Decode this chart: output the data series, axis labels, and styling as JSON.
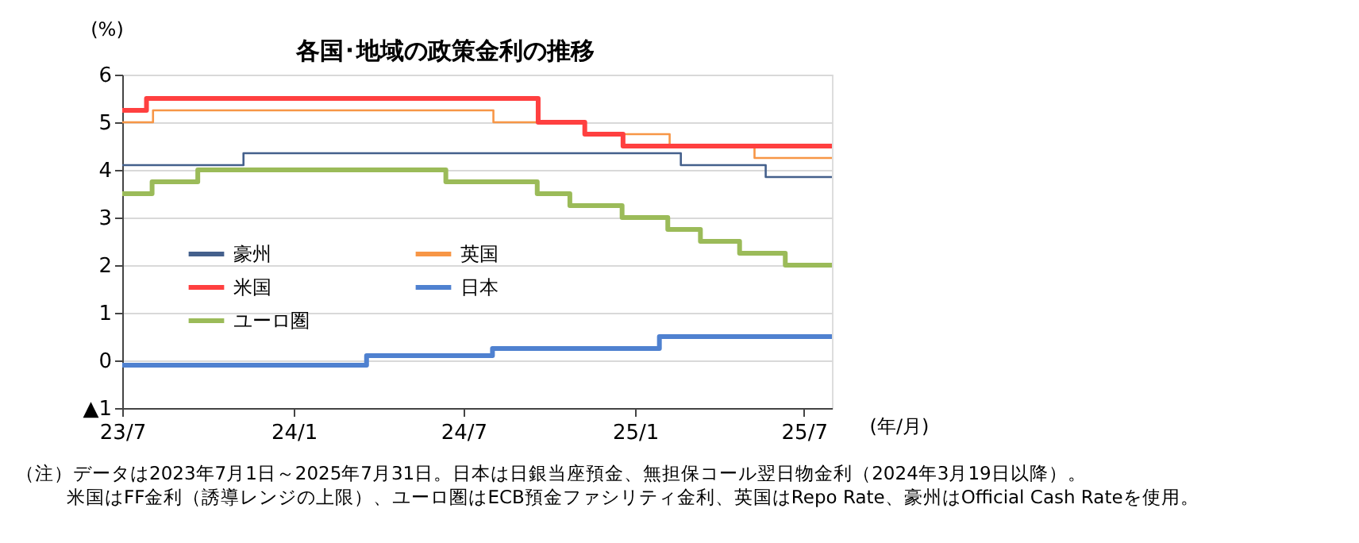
{
  "chart_data": {
    "type": "step",
    "title": "各国･地域の政策金利の推移",
    "ylabel": "(%)",
    "xlabel": "(年/月)",
    "xlim": [
      "2023-07-01",
      "2025-07-31"
    ],
    "xticks": [
      {
        "value": "2023-07",
        "label": "23/7"
      },
      {
        "value": "2024-01",
        "label": "24/1"
      },
      {
        "value": "2024-07",
        "label": "24/7"
      },
      {
        "value": "2025-01",
        "label": "25/1"
      },
      {
        "value": "2025-07",
        "label": "25/7"
      }
    ],
    "ylim": [
      -1,
      6
    ],
    "yticks": [
      {
        "value": -1,
        "label": "▲1"
      },
      0,
      1,
      2,
      3,
      4,
      5,
      6
    ],
    "grid": "y",
    "legend": "left",
    "marker": "none",
    "line_style": "solid",
    "series": [
      {
        "name": "豪州",
        "color": "#44608c",
        "x": [
          "2023-07-01",
          "2023-11-08",
          "2025-02-19",
          "2025-05-21",
          "2025-07-31"
        ],
        "values": [
          4.1,
          4.35,
          4.1,
          3.85,
          3.85
        ]
      },
      {
        "name": "英国",
        "color": "#f79646",
        "x": [
          "2023-07-01",
          "2023-08-03",
          "2024-08-02",
          "2024-11-08",
          "2025-02-07",
          "2025-05-09",
          "2025-07-31"
        ],
        "values": [
          5.0,
          5.25,
          5.0,
          4.75,
          4.5,
          4.25,
          4.25
        ]
      },
      {
        "name": "米国",
        "color": "#ff4040",
        "x": [
          "2023-07-01",
          "2023-07-27",
          "2024-09-19",
          "2024-11-08",
          "2024-12-19",
          "2025-07-31"
        ],
        "values": [
          5.25,
          5.5,
          5.0,
          4.75,
          4.5,
          4.5
        ]
      },
      {
        "name": "日本",
        "color": "#4f81d0",
        "x": [
          "2023-07-01",
          "2024-03-19",
          "2024-08-01",
          "2025-01-27",
          "2025-07-31"
        ],
        "values": [
          -0.1,
          0.1,
          0.25,
          0.5,
          0.5
        ]
      },
      {
        "name": "ユーロ圏",
        "color": "#9bbb59",
        "x": [
          "2023-07-01",
          "2023-08-02",
          "2023-09-20",
          "2024-06-12",
          "2024-09-18",
          "2024-10-23",
          "2024-12-18",
          "2025-02-05",
          "2025-03-12",
          "2025-04-23",
          "2025-06-11",
          "2025-07-31"
        ],
        "values": [
          3.5,
          3.75,
          4.0,
          3.75,
          3.5,
          3.25,
          3.0,
          2.75,
          2.5,
          2.25,
          2.0,
          2.0
        ]
      }
    ],
    "annotations": [
      "（注）データは2023年7月1日～2025年7月31日。日本は日銀当座預金、無担保コール翌日物金利（2024年3月19日以降）。",
      "米国はFF金利（誘導レンジの上限）、ユーロ圏はECB預金ファシリティ金利、英国はRepo Rate、豪州はOfficial Cash Rateを使用。"
    ]
  }
}
